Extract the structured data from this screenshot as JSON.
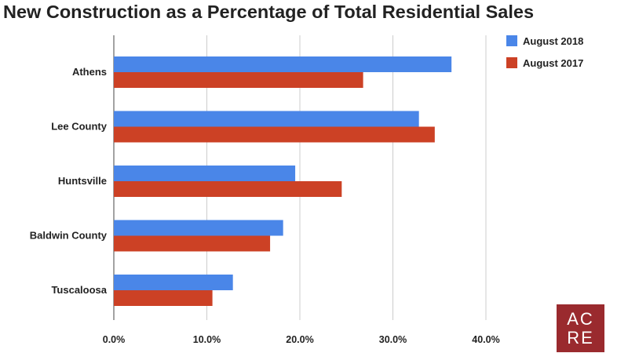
{
  "chart_data": {
    "type": "bar",
    "orientation": "horizontal",
    "title": "New Construction as a Percentage of Total Residential Sales",
    "categories": [
      "Athens",
      "Lee County",
      "Huntsville",
      "Baldwin County",
      "Tuscaloosa"
    ],
    "series": [
      {
        "name": "August 2018",
        "color": "#4a86e8",
        "values": [
          36.3,
          32.8,
          19.5,
          18.2,
          12.8
        ]
      },
      {
        "name": "August 2017",
        "color": "#cc4125",
        "values": [
          26.8,
          34.5,
          24.5,
          16.8,
          10.6
        ]
      }
    ],
    "xlim": [
      0,
      40
    ],
    "x_ticks": [
      "0.0%",
      "10.0%",
      "20.0%",
      "30.0%",
      "40.0%"
    ],
    "grid": true,
    "legend_position": "top-right"
  },
  "logo": {
    "line1": "AC",
    "line2": "RE",
    "color": "#9a2a2e"
  }
}
